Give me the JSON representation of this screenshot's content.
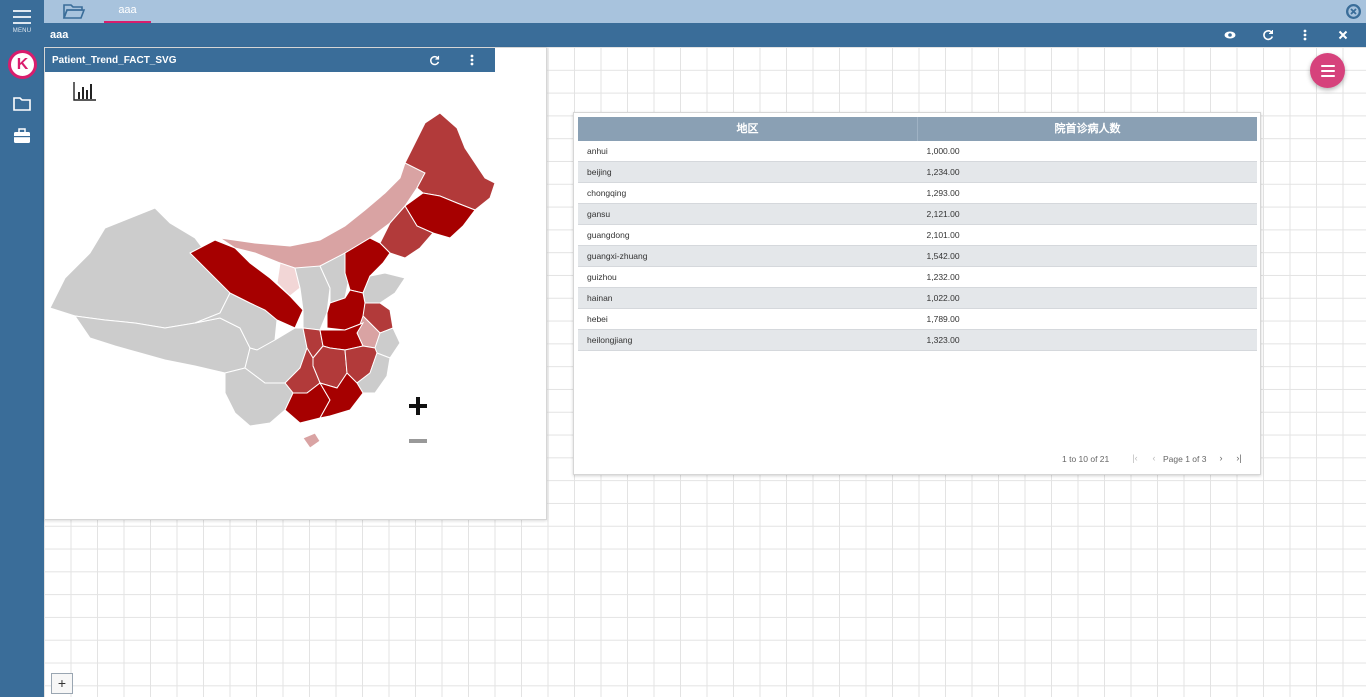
{
  "sidebar": {
    "menu_label": "MENU"
  },
  "tabs": [
    {
      "label": "aaa"
    }
  ],
  "dashboard": {
    "title": "aaa"
  },
  "map_widget": {
    "title": "Patient_Trend_FACT_SVG",
    "zoom_in_label": "+",
    "zoom_out_label": "−"
  },
  "table_widget": {
    "columns": [
      "地区",
      "院首诊病人数"
    ],
    "rows": [
      [
        "anhui",
        "1,000.00"
      ],
      [
        "beijing",
        "1,234.00"
      ],
      [
        "chongqing",
        "1,293.00"
      ],
      [
        "gansu",
        "2,121.00"
      ],
      [
        "guangdong",
        "2,101.00"
      ],
      [
        "guangxi-zhuang",
        "1,542.00"
      ],
      [
        "guizhou",
        "1,232.00"
      ],
      [
        "hainan",
        "1,022.00"
      ],
      [
        "hebei",
        "1,789.00"
      ],
      [
        "heilongjiang",
        "1,323.00"
      ]
    ],
    "pagination": {
      "summary": "1 to 10 of 21",
      "page_text": "Page 1 of 3"
    }
  },
  "add_button_label": "+",
  "colors": {
    "sidebar": "#3a6d99",
    "tabbar": "#a8c3dd",
    "accent": "#d91d6d",
    "map_high": "#a60000",
    "map_mid": "#b23a3a",
    "map_low": "#d9a3a3",
    "map_none": "#cccccc"
  }
}
